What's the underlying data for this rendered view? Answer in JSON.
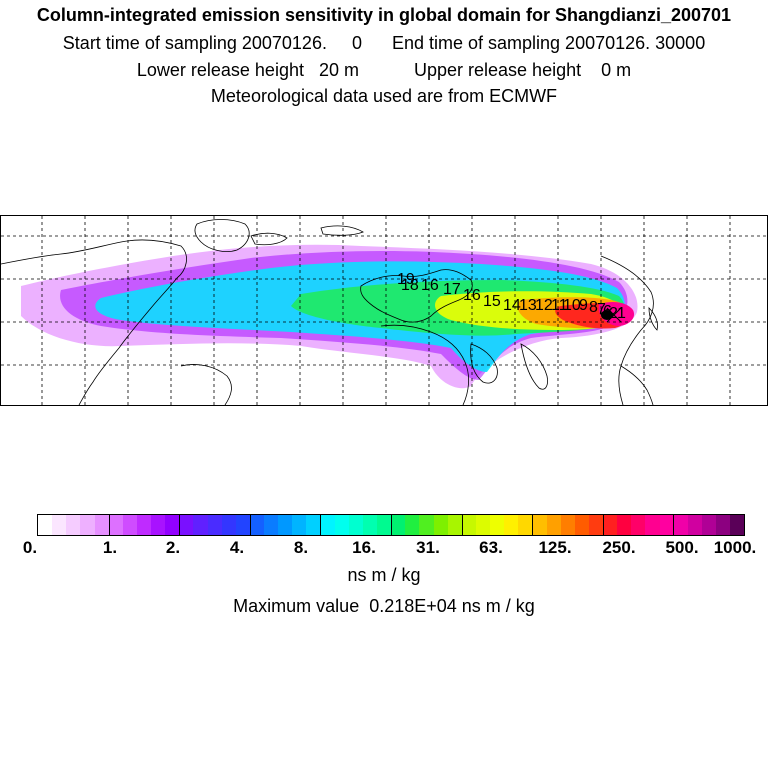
{
  "header": {
    "title": "Column-integrated emission sensitivity in global domain for Shangdianzi_200701",
    "line1": "Start time of sampling 20070126.     0      End time of sampling 20070126. 30000",
    "line2": "Lower release height   20 m           Upper release height    0 m",
    "line3": "Meteorological data used are from ECMWF"
  },
  "map": {
    "age_labels": [
      "19",
      "18",
      "16",
      "17",
      "16",
      "15",
      "14",
      "13",
      "12",
      "11",
      "10",
      "9",
      "8",
      "7",
      "6",
      "2",
      "1"
    ]
  },
  "colorbar": {
    "ticks": [
      "0.",
      "1.",
      "2.",
      "4.",
      "8.",
      "16.",
      "31.",
      "63.",
      "125.",
      "250.",
      "500.",
      "1000."
    ],
    "colors": [
      "#ffffff",
      "#fbe6ff",
      "#f5ccff",
      "#eeb0ff",
      "#e690ff",
      "#dd70ff",
      "#cf4cff",
      "#bf2bff",
      "#a812ff",
      "#9200ff",
      "#7a10ff",
      "#6020ff",
      "#4a2cff",
      "#3336ff",
      "#2244ff",
      "#1460ff",
      "#0a7cff",
      "#0098ff",
      "#00b4ff",
      "#00d0ff",
      "#00f4ff",
      "#00ffee",
      "#00ffd0",
      "#00ffb0",
      "#00fa90",
      "#00f070",
      "#20ef40",
      "#50ef20",
      "#7ef000",
      "#a8f500",
      "#c6f800",
      "#dcfc00",
      "#eeff00",
      "#fff000",
      "#ffd800",
      "#ffbe00",
      "#ffa000",
      "#ff7e00",
      "#ff5c00",
      "#ff3c10",
      "#ff2020",
      "#ff0040",
      "#ff0068",
      "#ff0090",
      "#ff00a0",
      "#f000a8",
      "#d000a0",
      "#b00096",
      "#8c0080",
      "#5a0058"
    ],
    "unit": "ns m / kg",
    "max_value": "Maximum value  0.218E+04 ns m / kg"
  }
}
